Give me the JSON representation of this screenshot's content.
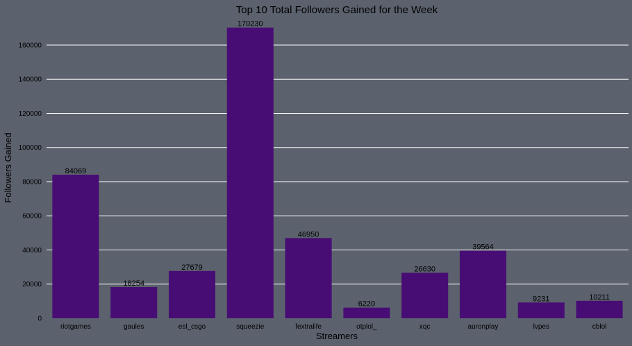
{
  "chart_data": {
    "type": "bar",
    "title": "Top 10 Total Followers Gained for the Week",
    "xlabel": "Streamers",
    "ylabel": "Followers Gained",
    "categories": [
      "riotgames",
      "gaules",
      "esl_csgo",
      "squeezie",
      "fextralife",
      "otplol_",
      "xqc",
      "auronplay",
      "lvpes",
      "cblol"
    ],
    "values": [
      84069,
      18254,
      27679,
      170230,
      46950,
      6220,
      26630,
      39564,
      9231,
      10211
    ],
    "ylim": [
      0,
      175000
    ],
    "yticks": [
      0,
      20000,
      40000,
      60000,
      80000,
      100000,
      120000,
      140000,
      160000
    ],
    "grid": true,
    "bar_color": "#480d74",
    "background_color": "#5b616d",
    "gridline_color": "#ffffff"
  }
}
